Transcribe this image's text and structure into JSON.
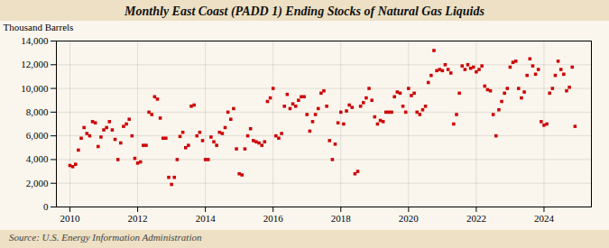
{
  "chart_data": {
    "type": "scatter",
    "title": "Monthly East Coast (PADD 1) Ending Stocks of Natural Gas Liquids",
    "ylabel": "Thousand Barrels",
    "source": "Source: U.S. Energy Information Administration",
    "color": "#cc0000",
    "marker": "square",
    "grid": true,
    "xlim": [
      2009.6,
      2025.4
    ],
    "xticks": [
      2010,
      2012,
      2014,
      2016,
      2018,
      2020,
      2022,
      2024
    ],
    "ylim": [
      0,
      14000
    ],
    "yticks": [
      0,
      {
        "value": 2000,
        "label": "2,000"
      },
      {
        "value": 4000,
        "label": "4,000"
      },
      {
        "value": 6000,
        "label": "6,000"
      },
      {
        "value": 8000,
        "label": "8,000"
      },
      {
        "value": 10000,
        "label": "10,000"
      },
      {
        "value": 12000,
        "label": "12,000"
      },
      {
        "value": 14000,
        "label": "14,000"
      }
    ],
    "x": [
      2010.0,
      2010.083,
      2010.167,
      2010.25,
      2010.333,
      2010.417,
      2010.5,
      2010.583,
      2010.667,
      2010.75,
      2010.833,
      2010.917,
      2011.0,
      2011.083,
      2011.167,
      2011.25,
      2011.333,
      2011.417,
      2011.5,
      2011.583,
      2011.667,
      2011.75,
      2011.833,
      2011.917,
      2012.0,
      2012.083,
      2012.167,
      2012.25,
      2012.333,
      2012.417,
      2012.5,
      2012.583,
      2012.667,
      2012.75,
      2012.833,
      2012.917,
      2013.0,
      2013.083,
      2013.167,
      2013.25,
      2013.333,
      2013.417,
      2013.5,
      2013.583,
      2013.667,
      2013.75,
      2013.833,
      2013.917,
      2014.0,
      2014.083,
      2014.167,
      2014.25,
      2014.333,
      2014.417,
      2014.5,
      2014.583,
      2014.667,
      2014.75,
      2014.833,
      2014.917,
      2015.0,
      2015.083,
      2015.167,
      2015.25,
      2015.333,
      2015.417,
      2015.5,
      2015.583,
      2015.667,
      2015.75,
      2015.833,
      2015.917,
      2016.0,
      2016.083,
      2016.167,
      2016.25,
      2016.333,
      2016.417,
      2016.5,
      2016.583,
      2016.667,
      2016.75,
      2016.833,
      2016.917,
      2017.0,
      2017.083,
      2017.167,
      2017.25,
      2017.333,
      2017.417,
      2017.5,
      2017.583,
      2017.667,
      2017.75,
      2017.833,
      2017.917,
      2018.0,
      2018.083,
      2018.167,
      2018.25,
      2018.333,
      2018.417,
      2018.5,
      2018.583,
      2018.667,
      2018.75,
      2018.833,
      2018.917,
      2019.0,
      2019.083,
      2019.167,
      2019.25,
      2019.333,
      2019.417,
      2019.5,
      2019.583,
      2019.667,
      2019.75,
      2019.833,
      2019.917,
      2020.0,
      2020.083,
      2020.167,
      2020.25,
      2020.333,
      2020.417,
      2020.5,
      2020.583,
      2020.667,
      2020.75,
      2020.833,
      2020.917,
      2021.0,
      2021.083,
      2021.167,
      2021.25,
      2021.333,
      2021.417,
      2021.5,
      2021.583,
      2021.667,
      2021.75,
      2021.833,
      2021.917,
      2022.0,
      2022.083,
      2022.167,
      2022.25,
      2022.333,
      2022.417,
      2022.5,
      2022.583,
      2022.667,
      2022.75,
      2022.833,
      2022.917,
      2023.0,
      2023.083,
      2023.167,
      2023.25,
      2023.333,
      2023.417,
      2023.5,
      2023.583,
      2023.667,
      2023.75,
      2023.833,
      2023.917,
      2024.0,
      2024.083,
      2024.167,
      2024.25,
      2024.333,
      2024.417,
      2024.5,
      2024.583,
      2024.667,
      2024.75,
      2024.833,
      2024.917
    ],
    "values": [
      3500,
      3400,
      3600,
      4800,
      5800,
      6700,
      6200,
      6000,
      7200,
      7100,
      5100,
      5900,
      6500,
      6700,
      7200,
      6500,
      5700,
      4000,
      5400,
      6800,
      7000,
      7400,
      6000,
      4100,
      3700,
      3800,
      5200,
      5200,
      8000,
      7800,
      9300,
      9100,
      7500,
      5800,
      5800,
      2500,
      1900,
      2500,
      4000,
      5950,
      6300,
      5000,
      5200,
      8500,
      8600,
      6000,
      6300,
      5600,
      4000,
      4000,
      5900,
      5500,
      5200,
      6300,
      6200,
      6700,
      8000,
      7400,
      8300,
      4900,
      2800,
      2700,
      4900,
      6000,
      6600,
      5600,
      5500,
      5400,
      5200,
      5500,
      8900,
      9200,
      10000,
      6000,
      5800,
      6200,
      8500,
      9500,
      8300,
      8700,
      8500,
      9000,
      9300,
      9300,
      7800,
      6400,
      7200,
      7800,
      8300,
      9600,
      9800,
      8500,
      5600,
      4000,
      5300,
      7100,
      8000,
      7000,
      8100,
      8600,
      8400,
      2800,
      3000,
      8500,
      8800,
      9200,
      10000,
      9000,
      7600,
      7000,
      7300,
      7200,
      8000,
      8000,
      8000,
      9300,
      9700,
      9600,
      8500,
      8000,
      10000,
      9400,
      9600,
      8000,
      7800,
      8200,
      8500,
      10500,
      11100,
      13200,
      11500,
      11600,
      11500,
      12000,
      11600,
      11300,
      7000,
      7800,
      9600,
      11900,
      11600,
      12000,
      11700,
      11800,
      11400,
      11600,
      11900,
      10200,
      9900,
      9800,
      7800,
      6000,
      8200,
      8900,
      9600,
      10000,
      11800,
      12200,
      12300,
      10000,
      9200,
      9700,
      11100,
      12500,
      11900,
      11200,
      11600,
      7200,
      6900,
      7000,
      9600,
      10000,
      11100,
      12300,
      11600,
      11200,
      9800,
      10100,
      11800,
      6800
    ]
  }
}
